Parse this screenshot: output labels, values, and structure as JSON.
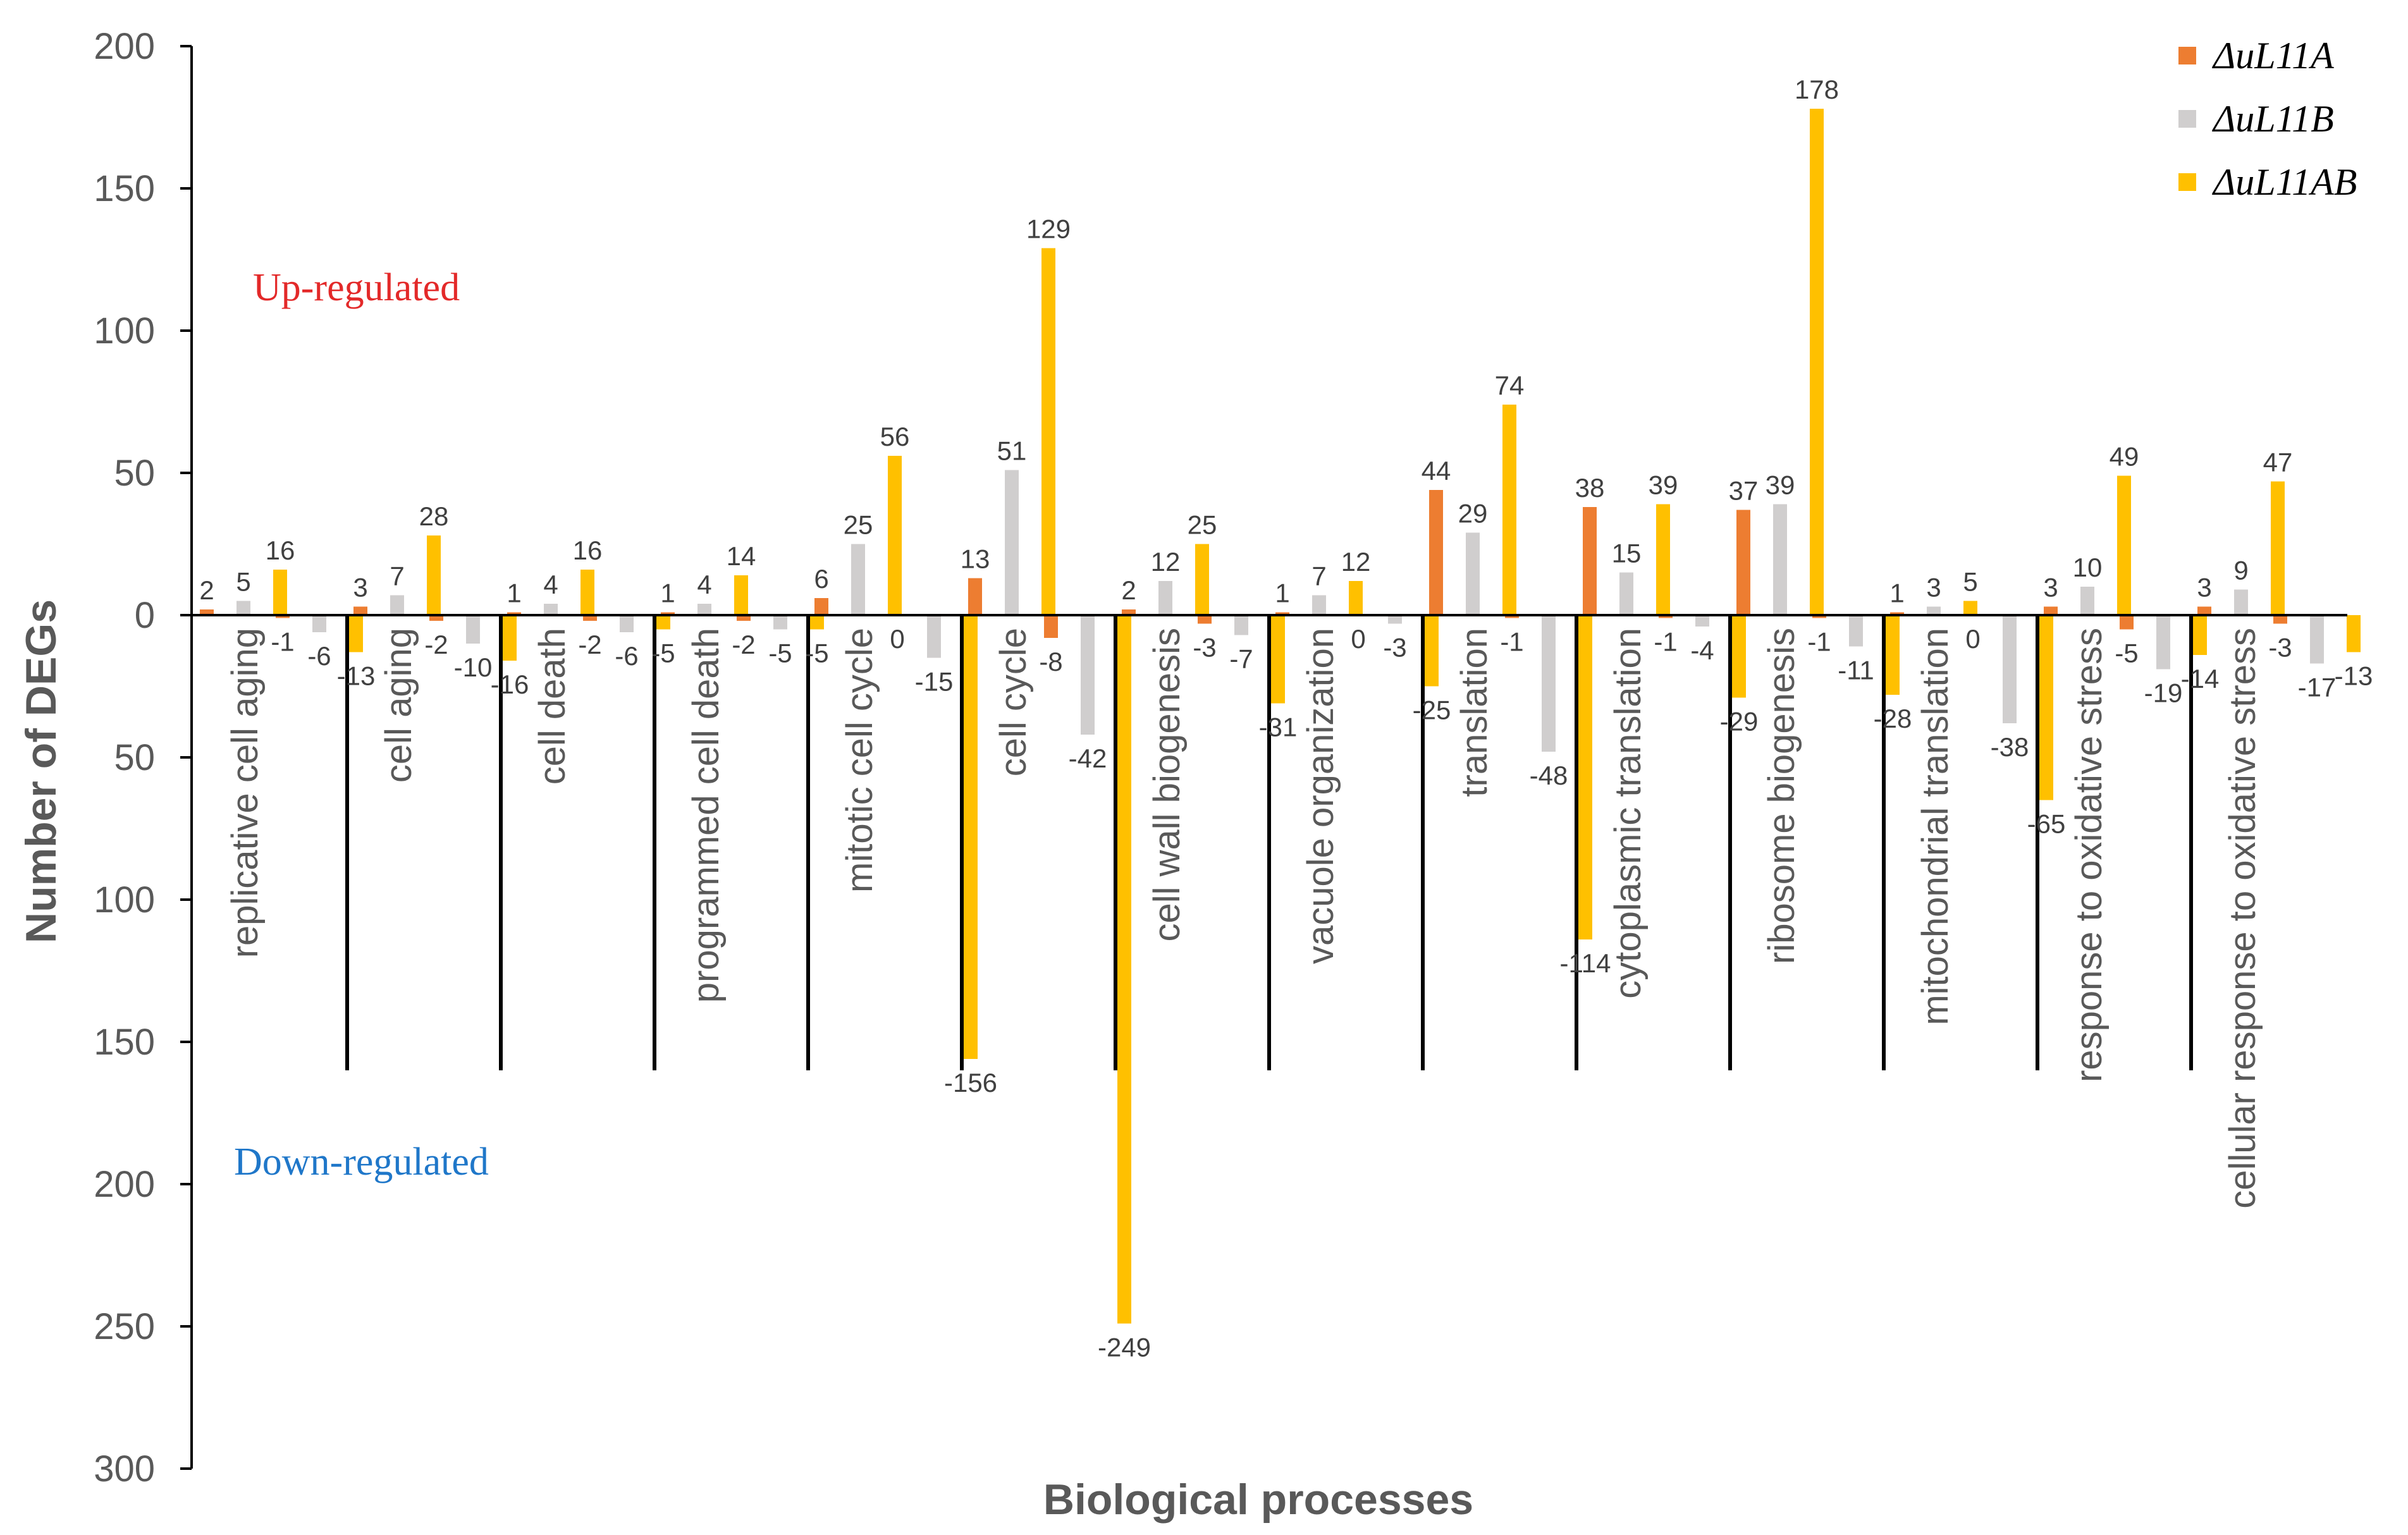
{
  "chart_data": {
    "type": "bar",
    "title": "",
    "xlabel": "Biological processes",
    "ylabel": "Number of DEGs",
    "ylim": [
      -300,
      200
    ],
    "yticks": [
      200,
      150,
      100,
      50,
      0,
      -50,
      -100,
      -150,
      -200,
      -250,
      -300
    ],
    "ytick_labels": [
      "200",
      "150",
      "100",
      "50",
      "0",
      "50",
      "100",
      "150",
      "200",
      "250",
      "300"
    ],
    "grid": false,
    "legend_position": "top-right",
    "categories": [
      "replicative cell aging",
      "cell aging",
      "cell death",
      "programmed cell death",
      "mitotic cell cycle",
      "cell cycle",
      "cell wall biogenesis",
      "vacuole organization",
      "translation",
      "cytoplasmic translation",
      "ribosome biogenesis",
      "mitochondrial translation",
      "response to oxidative stress",
      "cellular response to oxidative stress"
    ],
    "series": [
      {
        "name": "ΔuL11A",
        "color": "#ED7D31",
        "up": [
          2,
          3,
          1,
          1,
          6,
          13,
          2,
          1,
          44,
          38,
          37,
          1,
          3,
          3
        ],
        "down": [
          -1,
          -2,
          -2,
          -2,
          0,
          -8,
          -3,
          0,
          -1,
          -1,
          -1,
          0,
          -5,
          -3
        ],
        "up_labels": [
          "2",
          "3",
          "1",
          "1",
          "6",
          "13",
          "2",
          "1",
          "44",
          "38",
          "37",
          "1",
          "3",
          "3"
        ],
        "down_labels": [
          "-1",
          "-2",
          "-2",
          "-2",
          "0",
          "-8",
          "-3",
          "0",
          "-1",
          "-1",
          "-1",
          "0",
          "-5",
          "-3"
        ]
      },
      {
        "name": "ΔuL11B",
        "color": "#D0CECE",
        "up": [
          5,
          7,
          4,
          4,
          25,
          51,
          12,
          7,
          29,
          15,
          39,
          3,
          10,
          9
        ],
        "down": [
          -6,
          -10,
          -6,
          -5,
          -15,
          -42,
          -7,
          -3,
          -48,
          -4,
          -11,
          -38,
          -19,
          -17
        ],
        "up_labels": [
          "5",
          "7",
          "4",
          "4",
          "25",
          "51",
          "12",
          "7",
          "29",
          "15",
          "39",
          "3",
          "10",
          "9"
        ],
        "down_labels": [
          "-6",
          "-10",
          "-6",
          "-5",
          "-15",
          "-42",
          "-7",
          "-3",
          "-48",
          "-4",
          "-11",
          "-38",
          "-19",
          "-17"
        ]
      },
      {
        "name": "ΔuL11AB",
        "color": "#FFC000",
        "up": [
          16,
          28,
          16,
          14,
          56,
          129,
          25,
          12,
          74,
          39,
          178,
          5,
          49,
          47
        ],
        "down": [
          -13,
          -16,
          -5,
          -5,
          -156,
          -249,
          -31,
          -25,
          -114,
          -29,
          -28,
          -65,
          -14,
          -13
        ],
        "up_labels": [
          "16",
          "28",
          "16",
          "14",
          "56",
          "129",
          "25",
          "12",
          "74",
          "39",
          "178",
          "5",
          "49",
          "47"
        ],
        "down_labels": [
          "-13",
          "-16",
          "-5",
          "-5",
          "-156",
          "-249",
          "-31",
          "-25",
          "-114",
          "-29",
          "-28",
          "-65",
          "-14",
          "-13"
        ]
      }
    ],
    "annotations": [
      {
        "text": "Up-regulated",
        "color": "#E32929"
      },
      {
        "text": "Down-regulated",
        "color": "#1F77C9"
      }
    ]
  }
}
